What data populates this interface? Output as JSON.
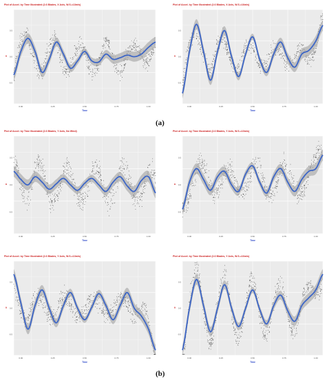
{
  "figure": {
    "captions": {
      "a": "(a)",
      "b": "(b)"
    }
  },
  "colors": {
    "panel_bg": "#ebebeb",
    "grid": "#ffffff",
    "fit_line": "#3d66c7",
    "confidence_band": "#9a9a9a",
    "points": "#222222",
    "title": "#cc2222",
    "axis_label": "#2b47c9"
  },
  "chart_data": [
    {
      "type": "scatter",
      "title": "Plot of Accel. by Time Illustrated (2.6 Blades, X Axis, W.S.=13m/s)",
      "xlabel": "Time",
      "ylabel": "a",
      "xlim": [
        0,
        1000
      ],
      "ylim": [
        -0.9,
        0.9
      ],
      "xticks": [
        "0.00",
        "0.25",
        "0.50",
        "0.75",
        "1.00"
      ],
      "yticks": [
        "0.5",
        "0.0",
        "-0.5"
      ],
      "fit": {
        "x": [
          0,
          50,
          100,
          150,
          200,
          250,
          300,
          350,
          400,
          450,
          500,
          550,
          600,
          650,
          700,
          750,
          800,
          850,
          900,
          950,
          1000
        ],
        "y": [
          -0.35,
          0.1,
          0.35,
          0.1,
          -0.3,
          -0.05,
          0.28,
          0.05,
          -0.22,
          -0.08,
          0.1,
          -0.08,
          -0.1,
          0.05,
          -0.05,
          -0.02,
          0.03,
          0.0,
          0.05,
          0.18,
          0.28
        ]
      },
      "scatter_spread": 0.45,
      "grid": true,
      "legend": "none"
    },
    {
      "type": "scatter",
      "title": "Plot of Accel. by Time Illustrated (2.6 Blades, X Axis, W.S.=16m/s)",
      "xlabel": "Time",
      "ylabel": "a",
      "xlim": [
        0,
        1000
      ],
      "ylim": [
        -0.9,
        0.9
      ],
      "xticks": [
        "0.00",
        "0.25",
        "0.50",
        "0.75",
        "1.00"
      ],
      "yticks": [
        "0.5",
        "0.0",
        "-0.5"
      ],
      "fit": {
        "x": [
          0,
          50,
          100,
          150,
          200,
          250,
          300,
          350,
          400,
          450,
          500,
          550,
          600,
          650,
          700,
          750,
          800,
          850,
          900,
          950,
          1000
        ],
        "y": [
          -0.7,
          0.1,
          0.62,
          0.1,
          -0.45,
          0.1,
          0.5,
          0.0,
          -0.38,
          0.05,
          0.38,
          -0.05,
          -0.3,
          0.05,
          0.28,
          -0.02,
          -0.2,
          0.05,
          0.12,
          0.3,
          0.6
        ]
      },
      "scatter_spread": 0.4,
      "grid": true,
      "legend": "none"
    },
    {
      "type": "scatter",
      "title": "Plot of Accel. by Time Illustrated (2.6 Blades, Y Axis, No Wind)",
      "xlabel": "Time",
      "ylabel": "a",
      "xlim": [
        0,
        1000
      ],
      "ylim": [
        -0.9,
        0.9
      ],
      "xticks": [
        "0.00",
        "0.25",
        "0.50",
        "0.75",
        "1.00"
      ],
      "yticks": [
        "0.5",
        "0.0",
        "-0.5"
      ],
      "fit": {
        "x": [
          0,
          50,
          100,
          150,
          200,
          250,
          300,
          350,
          400,
          450,
          500,
          550,
          600,
          650,
          700,
          750,
          800,
          850,
          900,
          950,
          1000
        ],
        "y": [
          0.25,
          0.1,
          0.0,
          0.15,
          0.05,
          -0.08,
          0.02,
          0.12,
          0.0,
          -0.1,
          0.03,
          0.12,
          0.0,
          -0.12,
          0.05,
          0.15,
          -0.02,
          -0.12,
          0.08,
          0.15,
          -0.15
        ]
      },
      "scatter_spread": 0.55,
      "grid": true,
      "legend": "none"
    },
    {
      "type": "scatter",
      "title": "Plot of Accel. by Time Illustrated (2.6 Blades, Y Axis, W.S.=10m/s)",
      "xlabel": "Time",
      "ylabel": "a",
      "xlim": [
        0,
        1000
      ],
      "ylim": [
        -0.9,
        0.9
      ],
      "xticks": [
        "0.00",
        "0.25",
        "0.50",
        "0.75",
        "1.00"
      ],
      "yticks": [
        "0.5",
        "0.0",
        "-0.5"
      ],
      "fit": {
        "x": [
          0,
          50,
          100,
          150,
          200,
          250,
          300,
          350,
          400,
          450,
          500,
          550,
          600,
          650,
          700,
          750,
          800,
          850,
          900,
          950,
          1000
        ],
        "y": [
          -0.45,
          0.05,
          0.3,
          0.1,
          -0.1,
          0.15,
          0.25,
          0.0,
          -0.12,
          0.2,
          0.35,
          0.05,
          -0.15,
          0.15,
          0.3,
          0.05,
          -0.12,
          0.1,
          0.25,
          0.3,
          0.55
        ]
      },
      "scatter_spread": 0.5,
      "grid": true,
      "legend": "none"
    },
    {
      "type": "scatter",
      "title": "Plot of Accel. by Time Illustrated (2.6 Blades, Y Axis, W.S.=13m/s)",
      "xlabel": "Time",
      "ylabel": "a",
      "xlim": [
        0,
        1000
      ],
      "ylim": [
        -0.9,
        0.9
      ],
      "xticks": [
        "0.00",
        "0.25",
        "0.50",
        "0.75",
        "1.00"
      ],
      "yticks": [
        "0.5",
        "0.0",
        "-0.5"
      ],
      "fit": {
        "x": [
          0,
          50,
          100,
          150,
          200,
          250,
          300,
          350,
          400,
          450,
          500,
          550,
          600,
          650,
          700,
          750,
          800,
          850,
          900,
          950,
          1000
        ],
        "y": [
          0.65,
          0.1,
          -0.4,
          0.05,
          0.35,
          0.0,
          -0.28,
          0.05,
          0.3,
          0.0,
          -0.22,
          0.02,
          0.28,
          0.05,
          -0.22,
          0.05,
          0.3,
          0.0,
          -0.15,
          -0.4,
          -0.8
        ]
      },
      "scatter_spread": 0.45,
      "grid": true,
      "legend": "none"
    },
    {
      "type": "scatter",
      "title": "Plot of Accel. by Time Illustrated (2.6 Blades, Y Axis, W.S.=16m/s)",
      "xlabel": "Time",
      "ylabel": "a",
      "xlim": [
        0,
        1000
      ],
      "ylim": [
        -0.9,
        0.9
      ],
      "xticks": [
        "0.00",
        "0.25",
        "0.50",
        "0.75",
        "1.00"
      ],
      "yticks": [
        "0.5",
        "0.0",
        "-0.5"
      ],
      "fit": {
        "x": [
          0,
          50,
          100,
          150,
          200,
          250,
          300,
          350,
          400,
          450,
          500,
          550,
          600,
          650,
          700,
          750,
          800,
          850,
          900,
          950,
          1000
        ],
        "y": [
          -0.8,
          0.0,
          0.55,
          0.05,
          -0.45,
          0.0,
          0.45,
          0.0,
          -0.35,
          0.0,
          0.35,
          -0.02,
          -0.3,
          0.05,
          0.25,
          -0.05,
          -0.25,
          0.05,
          0.2,
          0.35,
          0.65
        ]
      },
      "scatter_spread": 0.45,
      "grid": true,
      "legend": "none"
    }
  ]
}
